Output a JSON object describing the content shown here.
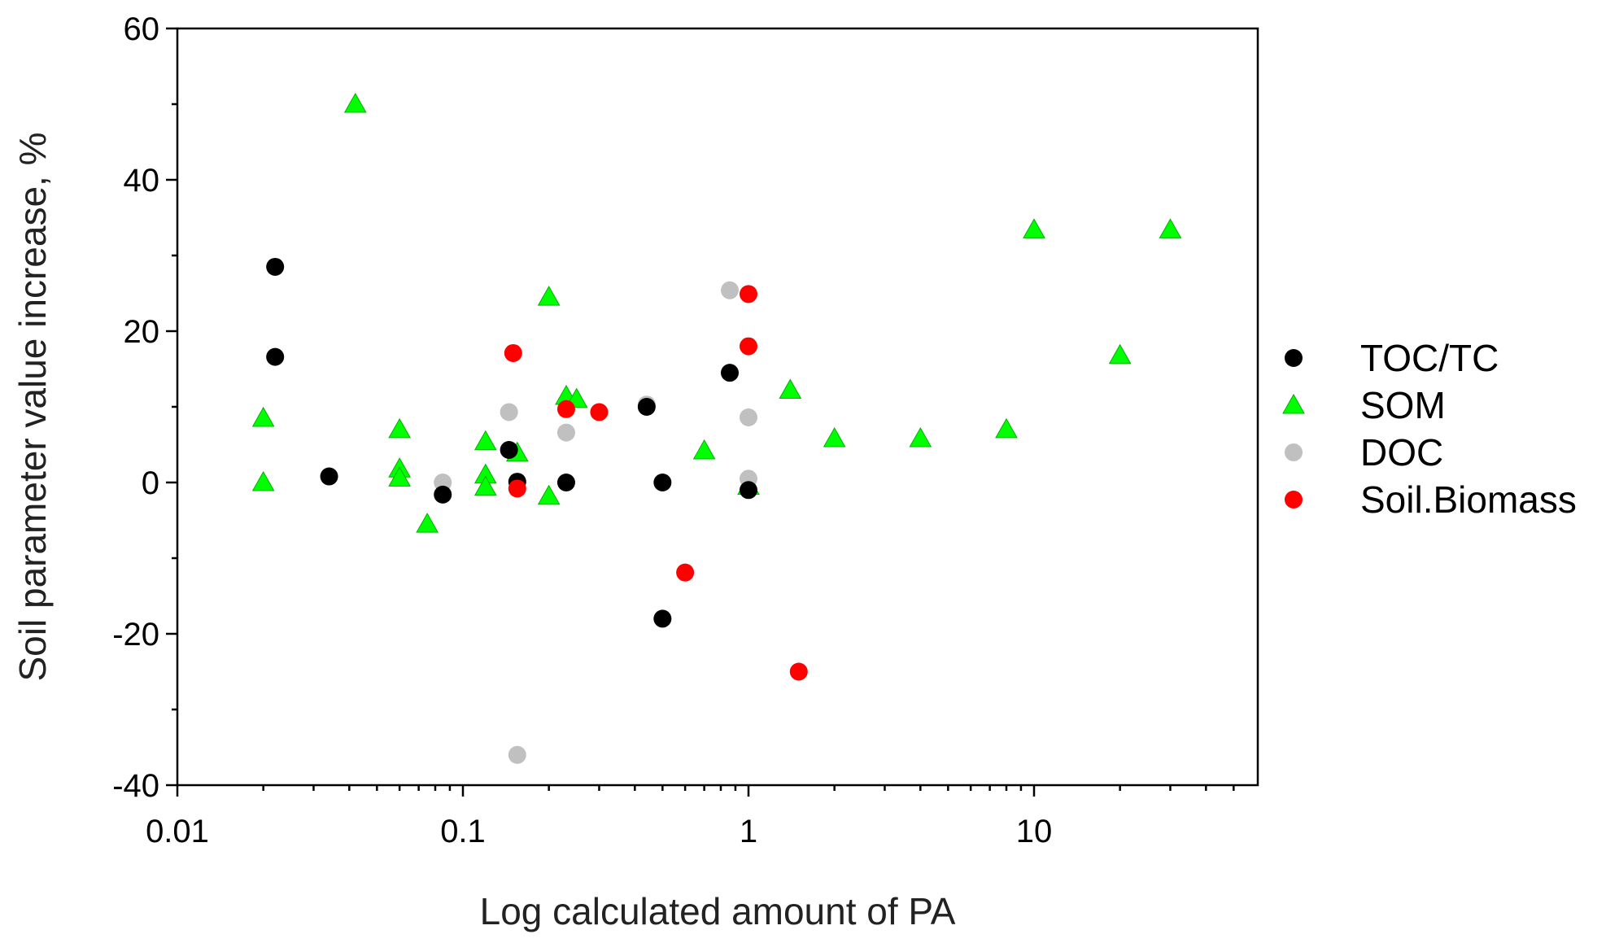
{
  "chart_data": {
    "type": "scatter",
    "title": "",
    "xlabel": "Log calculated amount of PA",
    "ylabel": "Soil parameter value increase, %",
    "xscale": "log",
    "xlim": [
      0.01,
      50
    ],
    "ylim": [
      -40,
      60
    ],
    "x_ticks": [
      {
        "value": 0.01,
        "label": "0.01"
      },
      {
        "value": 0.1,
        "label": "0.1"
      },
      {
        "value": 1,
        "label": "1"
      },
      {
        "value": 10,
        "label": "10"
      }
    ],
    "y_ticks": [
      {
        "value": -40,
        "label": "-40"
      },
      {
        "value": -20,
        "label": "-20"
      },
      {
        "value": 0,
        "label": "0"
      },
      {
        "value": 20,
        "label": "20"
      },
      {
        "value": 40,
        "label": "40"
      },
      {
        "value": 60,
        "label": "60"
      }
    ],
    "legend_position": "right",
    "series": [
      {
        "name": "SOM",
        "marker": "triangle",
        "color": "#00ff00",
        "points": [
          [
            0.02,
            8.5
          ],
          [
            0.02,
            0.0
          ],
          [
            0.042,
            50.0
          ],
          [
            0.06,
            7.0
          ],
          [
            0.06,
            1.8
          ],
          [
            0.06,
            0.6
          ],
          [
            0.075,
            -5.5
          ],
          [
            0.12,
            5.4
          ],
          [
            0.12,
            1.0
          ],
          [
            0.12,
            -0.6
          ],
          [
            0.155,
            3.9
          ],
          [
            0.2,
            24.5
          ],
          [
            0.2,
            -1.8
          ],
          [
            0.23,
            11.4
          ],
          [
            0.25,
            11.0
          ],
          [
            0.7,
            4.2
          ],
          [
            1.0,
            -0.5
          ],
          [
            1.4,
            12.2
          ],
          [
            2.0,
            5.8
          ],
          [
            4.0,
            5.8
          ],
          [
            8.0,
            7.0
          ],
          [
            10.0,
            33.4
          ],
          [
            20.0,
            16.8
          ],
          [
            30.0,
            33.4
          ]
        ]
      },
      {
        "name": "DOC",
        "marker": "circle",
        "color": "#c0c0c0",
        "points": [
          [
            0.085,
            0.0
          ],
          [
            0.145,
            9.3
          ],
          [
            0.155,
            -36.0
          ],
          [
            0.23,
            6.6
          ],
          [
            0.44,
            10.3
          ],
          [
            0.86,
            25.4
          ],
          [
            1.0,
            8.6
          ],
          [
            1.0,
            0.5
          ]
        ]
      },
      {
        "name": "TOC/TC",
        "marker": "circle",
        "color": "#000000",
        "points": [
          [
            0.022,
            28.5
          ],
          [
            0.022,
            16.6
          ],
          [
            0.034,
            0.8
          ],
          [
            0.085,
            -1.6
          ],
          [
            0.145,
            4.3
          ],
          [
            0.155,
            0.1
          ],
          [
            0.23,
            0.0
          ],
          [
            0.44,
            10.0
          ],
          [
            0.5,
            0.0
          ],
          [
            0.5,
            -18.0
          ],
          [
            0.86,
            14.5
          ],
          [
            1.0,
            -1.0
          ]
        ]
      },
      {
        "name": "Soil.Biomass",
        "marker": "circle",
        "color": "#ff0000",
        "points": [
          [
            0.15,
            17.1
          ],
          [
            0.155,
            -0.8
          ],
          [
            0.23,
            9.7
          ],
          [
            0.3,
            9.3
          ],
          [
            0.6,
            -11.9
          ],
          [
            1.0,
            24.9
          ],
          [
            1.0,
            18.0
          ],
          [
            1.5,
            -25.0
          ]
        ]
      }
    ],
    "legend": [
      {
        "name": "TOC/TC",
        "marker": "circle",
        "color": "#000000"
      },
      {
        "name": "SOM",
        "marker": "triangle",
        "color": "#00ff00"
      },
      {
        "name": "DOC",
        "marker": "circle",
        "color": "#c0c0c0"
      },
      {
        "name": "Soil.Biomass",
        "marker": "circle",
        "color": "#ff0000"
      }
    ]
  }
}
